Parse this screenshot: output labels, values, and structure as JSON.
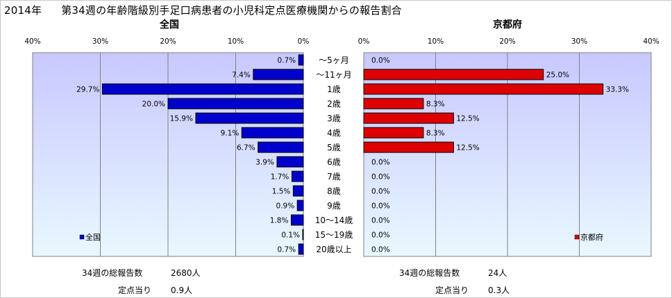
{
  "title_year": "2014年",
  "title_main": "第34週の年齢階級別手足口病患者の小児科定点医療機関からの報告割合",
  "left_panel": {
    "title": "全国",
    "legend": "全国",
    "color": "#0000cc",
    "reports_label": "34週の総報告数",
    "reports_value": "2680人",
    "per_site_label": "定点当り",
    "per_site_value": "0.9人"
  },
  "right_panel": {
    "title": "京都府",
    "legend": "京都府",
    "color": "#dd0000",
    "reports_label": "34週の総報告数",
    "reports_value": "24人",
    "per_site_label": "定点当り",
    "per_site_value": "0.3人"
  },
  "colors": {
    "plot_bg_top": "#c8c8ff",
    "plot_bg_bottom": "#e8f8ff",
    "grid": "#808080"
  },
  "chart_data": [
    {
      "type": "bar",
      "orientation": "horizontal",
      "direction": "right-to-left",
      "title": "全国",
      "categories": [
        "～5ヶ月",
        "～11ヶ月",
        "1歳",
        "2歳",
        "3歳",
        "4歳",
        "5歳",
        "6歳",
        "7歳",
        "8歳",
        "9歳",
        "10～14歳",
        "15～19歳",
        "20歳以上"
      ],
      "values": [
        0.7,
        7.4,
        29.7,
        20.0,
        15.9,
        9.1,
        6.7,
        3.9,
        1.7,
        1.5,
        0.9,
        1.8,
        0.1,
        0.7
      ],
      "value_labels": [
        "0.7%",
        "7.4%",
        "29.7%",
        "20.0%",
        "15.9%",
        "9.1%",
        "6.7%",
        "3.9%",
        "1.7%",
        "1.5%",
        "0.9%",
        "1.8%",
        "0.1%",
        "0.7%"
      ],
      "xlim": [
        0,
        40
      ],
      "ticks": [
        "0%",
        "10%",
        "20%",
        "30%",
        "40%"
      ],
      "grid": true,
      "legend": "bottom-left"
    },
    {
      "type": "bar",
      "orientation": "horizontal",
      "direction": "left-to-right",
      "title": "京都府",
      "categories": [
        "～5ヶ月",
        "～11ヶ月",
        "1歳",
        "2歳",
        "3歳",
        "4歳",
        "5歳",
        "6歳",
        "7歳",
        "8歳",
        "9歳",
        "10～14歳",
        "15～19歳",
        "20歳以上"
      ],
      "values": [
        0.0,
        25.0,
        33.3,
        8.3,
        12.5,
        8.3,
        12.5,
        0.0,
        0.0,
        0.0,
        0.0,
        0.0,
        0.0,
        0.0
      ],
      "value_labels": [
        "0.0%",
        "25.0%",
        "33.3%",
        "8.3%",
        "12.5%",
        "8.3%",
        "12.5%",
        "0.0%",
        "0.0%",
        "0.0%",
        "0.0%",
        "0.0%",
        "0.0%",
        "0.0%"
      ],
      "xlim": [
        0,
        40
      ],
      "ticks": [
        "0%",
        "10%",
        "20%",
        "30%",
        "40%"
      ],
      "grid": true,
      "legend": "bottom-right"
    }
  ]
}
